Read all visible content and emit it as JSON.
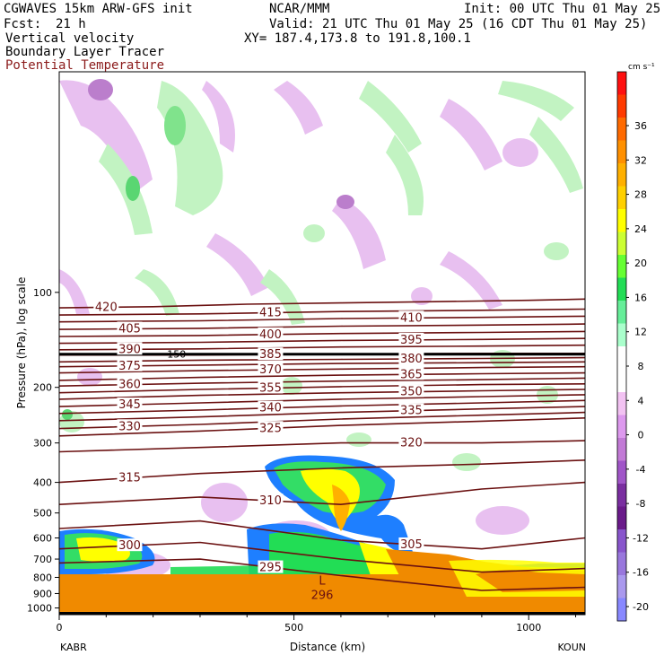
{
  "header": {
    "title_left": "CGWAVES 15km ARW-GFS init",
    "center": "NCAR/MMM",
    "init": "Init: 00 UTC Thu 01 May 25",
    "fcst_label": "Fcst:",
    "fcst_value": "21 h",
    "valid": "Valid: 21 UTC Thu 01 May 25 (16 CDT Thu 01 May 25)",
    "field1": "Vertical velocity",
    "field2": "Boundary Layer Tracer",
    "field3": "Potential Temperature",
    "xy": "XY= 187.4,173.8 to 191.8,100.1"
  },
  "colors": {
    "theta": "#6b1111",
    "terrain": "#f08a00",
    "frame": "#000000"
  },
  "chart_data": {
    "type": "heatmap",
    "xlabel": "Distance (km)",
    "ylabel": "Pressure (hPa), log scale",
    "xlim": [
      0,
      1120
    ],
    "ylim": [
      1050,
      20
    ],
    "x_ticks": [
      0,
      500,
      1000
    ],
    "y_ticks": [
      100,
      200,
      300,
      400,
      500,
      600,
      700,
      800,
      900,
      1000
    ],
    "left_station": "KABR",
    "right_station": "KOUN",
    "colorbar": {
      "unit": "cm s⁻¹",
      "ticks": [
        36,
        32,
        28,
        24,
        20,
        16,
        12,
        8,
        4,
        0,
        -4,
        -8,
        -12,
        -16,
        -20
      ],
      "colors": [
        "#ff1010",
        "#ff3a00",
        "#ff6a00",
        "#ff9000",
        "#ffb000",
        "#ffd000",
        "#ffff00",
        "#ccff33",
        "#66ff33",
        "#22dd55",
        "#66ee99",
        "#aaffcc",
        "#ffffff",
        "#ffffff",
        "#f2c2f2",
        "#dd99ee",
        "#c27ad6",
        "#a055c8",
        "#7a2ea0",
        "#6a1a8a",
        "#8855cc",
        "#9977dd",
        "#aa99ee",
        "#8888ff"
      ]
    },
    "theta_contours": [
      {
        "label": "420",
        "x": [
          0,
          200,
          400,
          600,
          800,
          1000,
          1120
        ],
        "p": [
          112,
          111,
          109,
          108,
          107,
          106,
          105
        ]
      },
      {
        "label": "415",
        "x": [
          0,
          300,
          600,
          900,
          1120
        ],
        "p": [
          118,
          117,
          115,
          114,
          113
        ]
      },
      {
        "label": "410",
        "x": [
          0,
          300,
          600,
          900,
          1120
        ],
        "p": [
          124,
          123,
          121,
          120,
          119
        ]
      },
      {
        "label": "405",
        "x": [
          0,
          300,
          600,
          900,
          1120
        ],
        "p": [
          131,
          130,
          128,
          127,
          126
        ]
      },
      {
        "label": "400",
        "x": [
          0,
          300,
          600,
          900,
          1120
        ],
        "p": [
          138,
          137,
          135,
          134,
          133
        ]
      },
      {
        "label": "395",
        "x": [
          0,
          300,
          600,
          900,
          1120
        ],
        "p": [
          145,
          144,
          142,
          141,
          140
        ]
      },
      {
        "label": "390",
        "x": [
          0,
          300,
          600,
          900,
          1120
        ],
        "p": [
          152,
          151,
          149,
          148,
          147
        ]
      },
      {
        "label": "385",
        "x": [
          0,
          300,
          600,
          900,
          1120
        ],
        "p": [
          158,
          158,
          157,
          156,
          156
        ]
      },
      {
        "label": "380",
        "x": [
          0,
          300,
          600,
          900,
          1120
        ],
        "p": [
          166,
          164,
          163,
          162,
          161
        ]
      },
      {
        "label": "375",
        "x": [
          0,
          300,
          600,
          900,
          1120
        ],
        "p": [
          172,
          170,
          168,
          167,
          166
        ]
      },
      {
        "label": "370",
        "x": [
          0,
          300,
          600,
          900,
          1120
        ],
        "p": [
          180,
          177,
          175,
          173,
          172
        ]
      },
      {
        "label": "365",
        "x": [
          0,
          300,
          600,
          900,
          1120
        ],
        "p": [
          190,
          186,
          183,
          181,
          180
        ]
      },
      {
        "label": "360",
        "x": [
          0,
          300,
          600,
          900,
          1120
        ],
        "p": [
          198,
          194,
          191,
          189,
          187
        ]
      },
      {
        "label": "355",
        "x": [
          0,
          300,
          600,
          900,
          1120
        ],
        "p": [
          208,
          203,
          199,
          196,
          195
        ]
      },
      {
        "label": "350",
        "x": [
          0,
          300,
          600,
          900,
          1120
        ],
        "p": [
          218,
          212,
          208,
          205,
          203
        ]
      },
      {
        "label": "345",
        "x": [
          0,
          300,
          600,
          900,
          1120
        ],
        "p": [
          230,
          224,
          218,
          214,
          211
        ]
      },
      {
        "label": "340",
        "x": [
          0,
          300,
          600,
          900,
          1120
        ],
        "p": [
          242,
          236,
          229,
          224,
          220
        ]
      },
      {
        "label": "335",
        "x": [
          0,
          300,
          600,
          900,
          1120
        ],
        "p": [
          255,
          248,
          240,
          234,
          230
        ]
      },
      {
        "label": "330",
        "x": [
          0,
          300,
          600,
          900,
          1120
        ],
        "p": [
          270,
          262,
          252,
          245,
          240
        ]
      },
      {
        "label": "325",
        "x": [
          0,
          300,
          600,
          900,
          1120
        ],
        "p": [
          285,
          275,
          264,
          256,
          250
        ]
      },
      {
        "label": "320",
        "x": [
          0,
          300,
          600,
          900,
          1120
        ],
        "p": [
          320,
          310,
          300,
          300,
          295
        ]
      },
      {
        "label": "315",
        "x": [
          0,
          300,
          600,
          900,
          1120
        ],
        "p": [
          400,
          375,
          360,
          350,
          340
        ]
      },
      {
        "label": "310",
        "x": [
          0,
          300,
          600,
          900,
          1120
        ],
        "p": [
          470,
          445,
          470,
          420,
          400
        ]
      },
      {
        "label": "305",
        "x": [
          0,
          300,
          600,
          900,
          1120
        ],
        "p": [
          560,
          530,
          610,
          650,
          600
        ]
      },
      {
        "label": "300",
        "x": [
          0,
          300,
          600,
          900,
          1120
        ],
        "p": [
          650,
          620,
          700,
          770,
          750
        ]
      },
      {
        "label": "295",
        "x": [
          0,
          300,
          600,
          900,
          1120
        ],
        "p": [
          720,
          700,
          790,
          880,
          860
        ]
      }
    ],
    "tropopause_line": {
      "label": "150",
      "p": 157
    },
    "extra_labels": [
      "296",
      "L"
    ],
    "terrain_p": [
      {
        "x": 0,
        "p": 735
      },
      {
        "x": 200,
        "p": 745
      },
      {
        "x": 400,
        "p": 770
      },
      {
        "x": 600,
        "p": 800
      },
      {
        "x": 800,
        "p": 830
      },
      {
        "x": 950,
        "p": 860
      },
      {
        "x": 1120,
        "p": 880
      }
    ]
  }
}
